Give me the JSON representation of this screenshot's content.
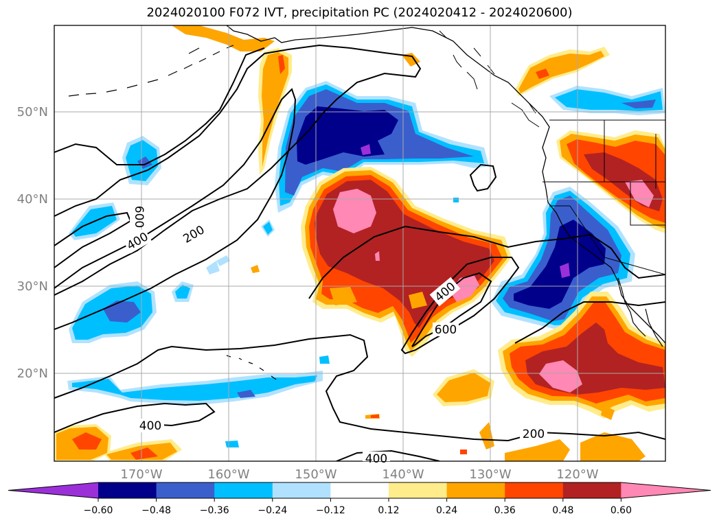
{
  "title": "2024020100 F072 IVT, precipitation PC (2024020412 - 2024020600)",
  "map": {
    "lat_labels": [
      "50°N",
      "40°N",
      "30°N",
      "20°N"
    ],
    "lon_labels": [
      "170°W",
      "160°W",
      "150°W",
      "140°W",
      "130°W",
      "120°W"
    ],
    "contour_labels": [
      "600",
      "400",
      "200",
      "400",
      "600",
      "400",
      "200",
      "400"
    ],
    "colors": {
      "land_outline": "#000000",
      "gridline": "#a9a9a9",
      "ivt_contour": "#000000"
    }
  },
  "colorbar": {
    "tick_labels": [
      "−0.60",
      "−0.48",
      "−0.36",
      "−0.24",
      "−0.12",
      "0.12",
      "0.24",
      "0.36",
      "0.48",
      "0.60"
    ],
    "colors": [
      "#9b30d9",
      "#00008b",
      "#3a5fcd",
      "#00bfff",
      "#b0e2ff",
      "#ffffff",
      "#ffec8b",
      "#ffa500",
      "#ff4500",
      "#b22222",
      "#ff88b4"
    ]
  }
}
